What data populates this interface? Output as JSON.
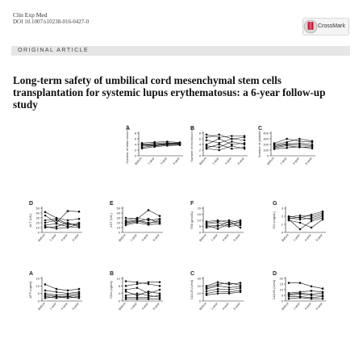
{
  "header": {
    "journal": "Clin Exp Med",
    "doi": "DOI 10.1007/s10238-016-0427-0",
    "crossmark": "CrossMark",
    "section": "ORIGINAL ARTICLE"
  },
  "title": "Long-term safety of umbilical cord mesenchymal stem cells transplantation for systemic lupus erythematosus: a 6-year follow-up study",
  "chart_data": [
    {
      "type": "line",
      "panel": "A",
      "ylabel": "Number of white blood cell",
      "ylim": [
        0,
        8
      ],
      "ytick_labels": [
        "0",
        "2",
        "4",
        "6",
        "8"
      ],
      "categories": [
        "Before",
        "1-year",
        "4-year",
        "6-year"
      ],
      "series": [
        {
          "values": [
            4.5,
            4.8,
            5.0,
            4.7
          ]
        },
        {
          "values": [
            4.0,
            4.4,
            4.6,
            4.3
          ]
        },
        {
          "values": [
            3.8,
            4.0,
            4.2,
            4.5
          ]
        },
        {
          "values": [
            3.5,
            3.8,
            4.0,
            4.2
          ]
        },
        {
          "values": [
            3.0,
            3.6,
            3.9,
            4.0
          ]
        },
        {
          "values": [
            4.2,
            3.4,
            4.4,
            4.6
          ]
        },
        {
          "values": [
            2.6,
            3.2,
            3.6,
            3.8
          ]
        }
      ]
    },
    {
      "type": "line",
      "panel": "B",
      "ylabel": "Number of red blood cell",
      "ylim": [
        0,
        8
      ],
      "ytick_labels": [
        "0",
        "2",
        "4",
        "6",
        "8"
      ],
      "categories": [
        "Before",
        "1-year",
        "4-year",
        "6-year"
      ],
      "series": [
        {
          "values": [
            7.5,
            6.5,
            7.0,
            7.0
          ]
        },
        {
          "values": [
            6.5,
            7.5,
            6.0,
            5.5
          ]
        },
        {
          "values": [
            5.5,
            4.5,
            6.0,
            6.5
          ]
        },
        {
          "values": [
            4.0,
            6.0,
            4.0,
            4.5
          ]
        },
        {
          "values": [
            3.5,
            3.0,
            5.0,
            4.0
          ]
        },
        {
          "values": [
            2.8,
            4.0,
            2.5,
            3.0
          ]
        },
        {
          "values": [
            2.5,
            2.0,
            3.5,
            2.5
          ]
        }
      ]
    },
    {
      "type": "line",
      "panel": "C",
      "ylabel": "Number of platelet",
      "ylim": [
        0,
        400
      ],
      "ytick_labels": [
        "0",
        "100",
        "200",
        "300",
        "400"
      ],
      "categories": [
        "Before",
        "1-year",
        "4-year",
        "6-year"
      ],
      "series": [
        {
          "values": [
            220,
            300,
            260,
            240
          ]
        },
        {
          "values": [
            200,
            240,
            300,
            260
          ]
        },
        {
          "values": [
            180,
            210,
            220,
            200
          ]
        },
        {
          "values": [
            160,
            200,
            190,
            180
          ]
        },
        {
          "values": [
            140,
            180,
            150,
            160
          ]
        },
        {
          "values": [
            120,
            140,
            160,
            130
          ]
        }
      ]
    },
    {
      "type": "line",
      "panel": "D",
      "ylabel": "ALT (U/L)",
      "ylim": [
        0,
        50
      ],
      "ytick_labels": [
        "0",
        "10",
        "20",
        "30",
        "40",
        "50"
      ],
      "categories": [
        "Before",
        "1-year",
        "4-year",
        "6-year"
      ],
      "series": [
        {
          "values": [
            42,
            30,
            25,
            28
          ]
        },
        {
          "values": [
            35,
            20,
            44,
            43
          ]
        },
        {
          "values": [
            25,
            28,
            18,
            15
          ]
        },
        {
          "values": [
            20,
            25,
            15,
            20
          ]
        },
        {
          "values": [
            15,
            18,
            12,
            10
          ]
        },
        {
          "values": [
            10,
            12,
            20,
            12
          ]
        },
        {
          "values": [
            12,
            8,
            10,
            18
          ]
        }
      ]
    },
    {
      "type": "line",
      "panel": "E",
      "ylabel": "AST (U/L)",
      "ylim": [
        0,
        50
      ],
      "ytick_labels": [
        "0",
        "10",
        "20",
        "30",
        "40",
        "50"
      ],
      "categories": [
        "Before",
        "1-year",
        "4-year",
        "6-year"
      ],
      "series": [
        {
          "values": [
            30,
            28,
            46,
            34
          ]
        },
        {
          "values": [
            25,
            30,
            25,
            28
          ]
        },
        {
          "values": [
            22,
            26,
            20,
            22
          ]
        },
        {
          "values": [
            20,
            24,
            18,
            26
          ]
        },
        {
          "values": [
            18,
            22,
            28,
            20
          ]
        },
        {
          "values": [
            15,
            20,
            16,
            18
          ]
        }
      ]
    },
    {
      "type": "line",
      "panel": "F",
      "ylabel": "TBil (μmol/L)",
      "ylim": [
        0,
        20
      ],
      "ytick_labels": [
        "0",
        "5",
        "10",
        "15",
        "20"
      ],
      "categories": [
        "Before",
        "1-year",
        "4-year",
        "6-year"
      ],
      "series": [
        {
          "values": [
            9,
            10,
            8,
            10
          ]
        },
        {
          "values": [
            8,
            9,
            10,
            8
          ]
        },
        {
          "values": [
            7,
            8,
            6,
            9
          ]
        },
        {
          "values": [
            6,
            3,
            7,
            7
          ]
        },
        {
          "values": [
            5,
            6,
            5,
            6
          ]
        },
        {
          "values": [
            4,
            5,
            9,
            4
          ]
        }
      ]
    },
    {
      "type": "line",
      "panel": "G",
      "ylabel": "SCr (mg/dL)",
      "ylim": [
        0,
        3
      ],
      "ytick_labels": [
        "0",
        "1",
        "2",
        "3"
      ],
      "categories": [
        "Before",
        "1-year",
        "4-year",
        "6-year"
      ],
      "series": [
        {
          "values": [
            2.0,
            1.8,
            2.2,
            2.6
          ]
        },
        {
          "values": [
            1.9,
            2.1,
            2.0,
            2.4
          ]
        },
        {
          "values": [
            1.8,
            1.6,
            1.8,
            2.2
          ]
        },
        {
          "values": [
            1.7,
            1.9,
            1.6,
            2.0
          ]
        },
        {
          "values": [
            1.6,
            0.4,
            1.4,
            1.8
          ]
        },
        {
          "values": [
            1.5,
            1.2,
            0.6,
            1.6
          ]
        }
      ]
    },
    {
      "type": "line",
      "panel": "A",
      "ylabel": "AFP (ng/ml)",
      "ylim": [
        0,
        15
      ],
      "ytick_labels": [
        "0",
        "5",
        "10",
        "15"
      ],
      "categories": [
        "Before",
        "1-year",
        "4-year",
        "6-year"
      ],
      "series": [
        {
          "values": [
            11,
            8,
            7,
            8
          ]
        },
        {
          "values": [
            7,
            6,
            5,
            6
          ]
        },
        {
          "values": [
            5,
            4,
            4,
            5
          ]
        },
        {
          "values": [
            4,
            3,
            3,
            4
          ]
        },
        {
          "values": [
            3,
            2,
            3,
            2
          ]
        },
        {
          "values": [
            2,
            3,
            2,
            3
          ]
        }
      ]
    },
    {
      "type": "line",
      "panel": "B",
      "ylabel": "CEA (ng/ml)",
      "ylim": [
        0,
        12
      ],
      "ytick_labels": [
        "0",
        "4",
        "8",
        "12"
      ],
      "categories": [
        "Before",
        "1-year",
        "4-year",
        "6-year"
      ],
      "series": [
        {
          "values": [
            10.5,
            10,
            9,
            8
          ]
        },
        {
          "values": [
            8,
            9,
            10,
            10
          ]
        },
        {
          "values": [
            6,
            7,
            4,
            6
          ]
        },
        {
          "values": [
            5,
            3,
            5,
            4
          ]
        },
        {
          "values": [
            3,
            4,
            3,
            2
          ]
        },
        {
          "values": [
            2,
            2,
            2,
            3
          ]
        },
        {
          "values": [
            1,
            1,
            1,
            1
          ]
        }
      ]
    },
    {
      "type": "line",
      "panel": "C",
      "ylabel": "CA125 (U/ml)",
      "ylim": [
        0,
        30
      ],
      "ytick_labels": [
        "0",
        "10",
        "20",
        "30"
      ],
      "categories": [
        "Before",
        "1-year",
        "4-year",
        "6-year"
      ],
      "series": [
        {
          "values": [
            20,
            25,
            22,
            24
          ]
        },
        {
          "values": [
            18,
            22,
            24,
            21
          ]
        },
        {
          "values": [
            16,
            20,
            18,
            19
          ]
        },
        {
          "values": [
            13,
            16,
            15,
            17
          ]
        },
        {
          "values": [
            10,
            13,
            12,
            14
          ]
        },
        {
          "values": [
            8,
            10,
            10,
            12
          ]
        }
      ]
    },
    {
      "type": "line",
      "panel": "D",
      "ylabel": "CA199 (U/ml)",
      "ylim": [
        0,
        20
      ],
      "ytick_labels": [
        "0",
        "5",
        "10",
        "15",
        "20"
      ],
      "categories": [
        "Before",
        "1-year",
        "4-year",
        "6-year"
      ],
      "series": [
        {
          "values": [
            16,
            16,
            13,
            11
          ]
        },
        {
          "values": [
            7,
            8,
            9,
            8
          ]
        },
        {
          "values": [
            6,
            7,
            6,
            7
          ]
        },
        {
          "values": [
            5,
            6,
            5,
            5
          ]
        },
        {
          "values": [
            4,
            4,
            3,
            4
          ]
        },
        {
          "values": [
            2,
            3,
            2,
            2
          ]
        }
      ]
    }
  ]
}
